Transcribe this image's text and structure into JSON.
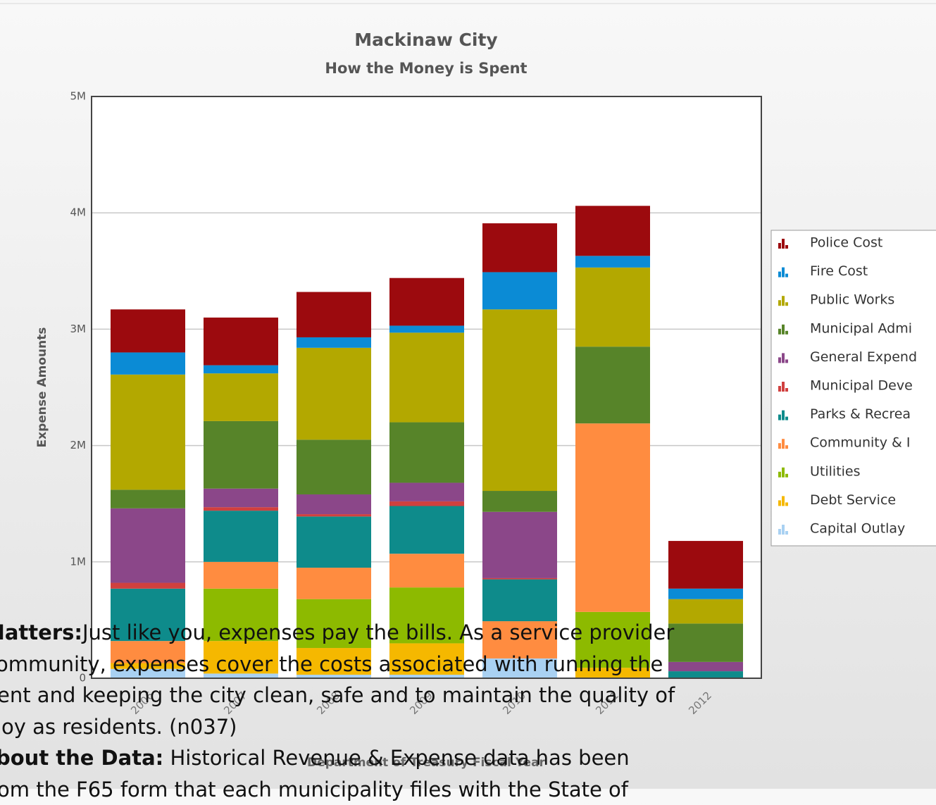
{
  "chart_data": {
    "type": "stacked_bar",
    "title": "Mackinaw City",
    "subtitle": "How the Money is Spent",
    "x_label": "Department of Treasury Fiscal Year",
    "y_label": "Expense Amounts",
    "categories": [
      "2006",
      "2007",
      "2008",
      "2009",
      "2010",
      "2011",
      "2012"
    ],
    "ylim": [
      0,
      5000000
    ],
    "yticks": [
      0,
      {
        "value": 1000000,
        "label": "1M"
      },
      {
        "value": 2000000,
        "label": "2M"
      },
      {
        "value": 3000000,
        "label": "3M"
      },
      {
        "value": 4000000,
        "label": "4M"
      },
      {
        "value": 5000000,
        "label": "5M"
      }
    ],
    "grid": true,
    "legend": "right",
    "series": [
      {
        "name": "Police Cost",
        "color": "#9c0a0e",
        "values": [
          370000,
          410000,
          390000,
          410000,
          420000,
          430000,
          410000
        ]
      },
      {
        "name": "Fire Cost",
        "color": "#0b8bd5",
        "values": [
          190000,
          70000,
          90000,
          60000,
          320000,
          100000,
          90000
        ]
      },
      {
        "name": "Public Works",
        "color": "#b3a800",
        "values": [
          990000,
          410000,
          790000,
          770000,
          1560000,
          680000,
          210000
        ]
      },
      {
        "name": "Municipal Admi",
        "color": "#578429",
        "values": [
          160000,
          580000,
          470000,
          520000,
          180000,
          660000,
          330000
        ]
      },
      {
        "name": "General Expend",
        "color": "#8b4789",
        "values": [
          640000,
          160000,
          170000,
          160000,
          570000,
          0,
          80000
        ]
      },
      {
        "name": "Municipal Deve",
        "color": "#d0403f",
        "values": [
          50000,
          30000,
          20000,
          40000,
          10000,
          0,
          0
        ]
      },
      {
        "name": "Parks & Recrea",
        "color": "#0e8b8b",
        "values": [
          450000,
          440000,
          440000,
          410000,
          360000,
          0,
          60000
        ]
      },
      {
        "name": "Community & I",
        "color": "#ff8c40",
        "values": [
          190000,
          230000,
          270000,
          290000,
          320000,
          1620000,
          0
        ]
      },
      {
        "name": "Utilities",
        "color": "#8dba00",
        "values": [
          0,
          450000,
          420000,
          480000,
          0,
          480000,
          0
        ]
      },
      {
        "name": "Debt Service",
        "color": "#f5b800",
        "values": [
          50000,
          280000,
          230000,
          270000,
          0,
          90000,
          0
        ]
      },
      {
        "name": "Capital Outlay",
        "color": "#a9d1f2",
        "values": [
          80000,
          40000,
          30000,
          30000,
          170000,
          0,
          0
        ]
      }
    ]
  },
  "overlay_text": [
    {
      "bold": "Matters:",
      "text": "Just like you, expenses pay the bills. As a service provider"
    },
    {
      "text": "ommunity, expenses cover the costs associated with running the"
    },
    {
      "text": "ent and keeping the city clean, safe and to maintain the quality of"
    },
    {
      "text": "joy as residents. (n037)"
    },
    {
      "bold": "bout the Data:",
      "text": " Historical Revenue & Expense data has been"
    },
    {
      "text": "om the F65 form that each municipality files with the State of"
    }
  ]
}
